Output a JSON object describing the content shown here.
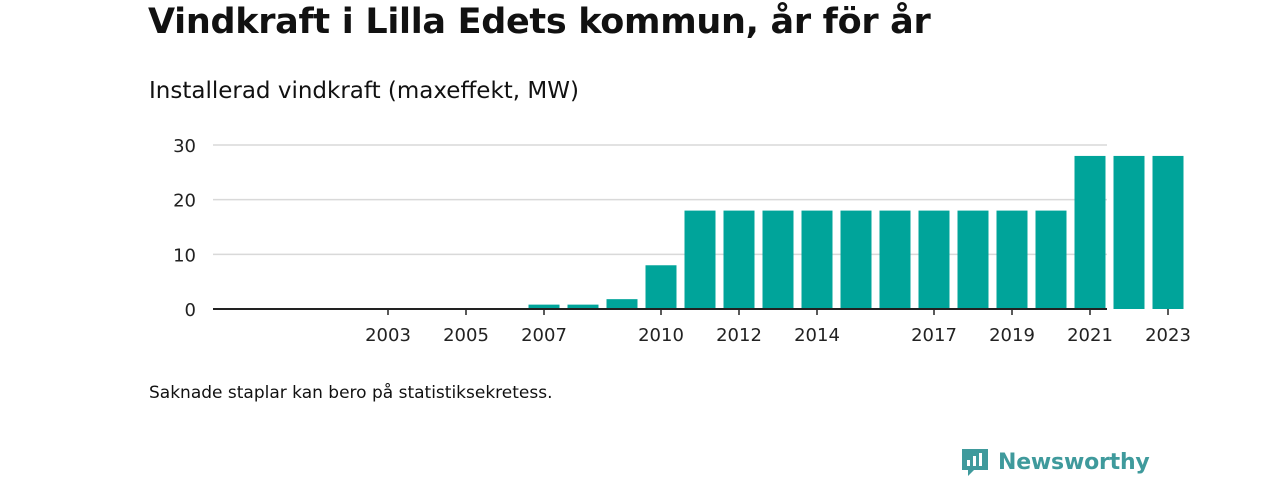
{
  "title": "Vindkraft i Lilla Edets kommun, år för år",
  "subtitle": "Installerad vindkraft (maxeffekt, MW)",
  "note": "Saknade staplar kan bero på statistiksekretess.",
  "brand": "Newsworthy",
  "colors": {
    "bar": "#00a49a",
    "grid": "#d9d9d9",
    "axis": "#222222",
    "brand": "#3f9a9c"
  },
  "chart_data": {
    "type": "bar",
    "title": "",
    "xlabel": "",
    "ylabel": "",
    "x": [
      2003,
      2004,
      2005,
      2006,
      2007,
      2008,
      2009,
      2010,
      2011,
      2012,
      2013,
      2014,
      2015,
      2016,
      2017,
      2018,
      2019,
      2020,
      2021,
      2022,
      2023
    ],
    "values": [
      0,
      0,
      0,
      0,
      0.8,
      0.8,
      1.8,
      8,
      18,
      18,
      18,
      18,
      18,
      18,
      18,
      18,
      18,
      18,
      28,
      28,
      28
    ],
    "x_tick_labels": [
      "2003",
      "2005",
      "2007",
      "2010",
      "2012",
      "2014",
      "2017",
      "2019",
      "2021",
      "2023"
    ],
    "y_ticks": [
      0,
      10,
      20,
      30
    ],
    "ylim": [
      0,
      30
    ],
    "grid": true
  }
}
